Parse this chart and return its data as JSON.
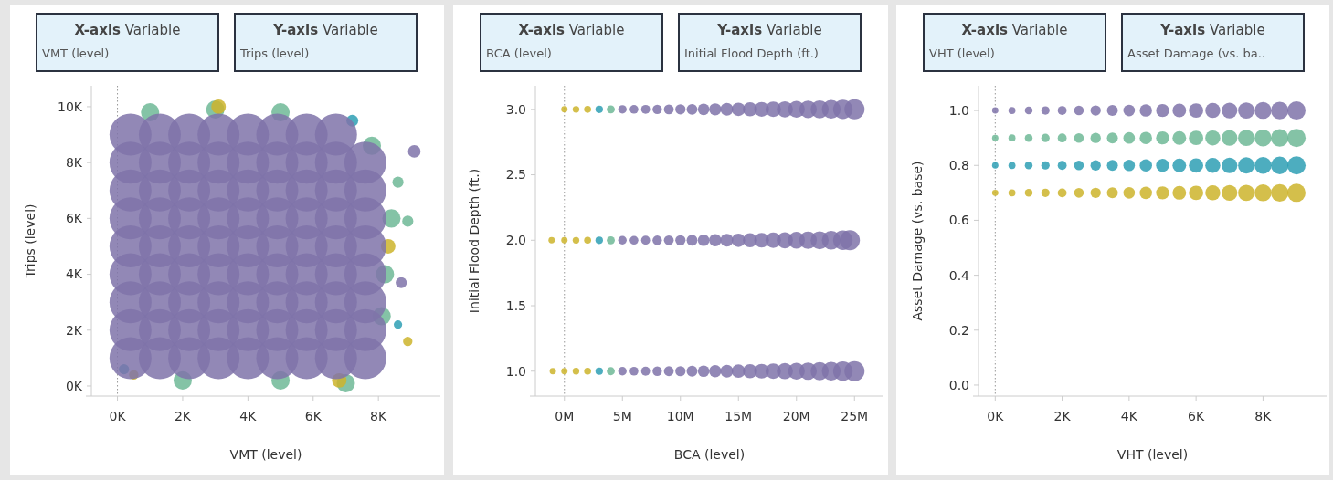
{
  "chart_data": [
    {
      "type": "bubble",
      "xlabel": "VMT (level)",
      "ylabel": "Trips (level)",
      "annotations": [
        "X-axis Variable",
        "VMT (level)",
        "Y-axis Variable",
        "Trips (level)"
      ],
      "marker": "circle",
      "xlim": [
        -0.8,
        9.9
      ],
      "ylim": [
        -0.36,
        10.75
      ],
      "xticks": [
        {
          "value": 0,
          "label": "0K"
        },
        {
          "value": 2,
          "label": "2K"
        },
        {
          "value": 4,
          "label": "4K"
        },
        {
          "value": 6,
          "label": "6K"
        },
        {
          "value": 8,
          "label": "8K"
        }
      ],
      "yticks": [
        {
          "value": 0,
          "label": "0K"
        },
        {
          "value": 2,
          "label": "2K"
        },
        {
          "value": 4,
          "label": "4K"
        },
        {
          "value": 6,
          "label": "6K"
        },
        {
          "value": 8,
          "label": "8K"
        },
        {
          "value": 10,
          "label": "10K"
        }
      ],
      "ref_lines": [
        {
          "axis": "x",
          "value": 0,
          "line_style": "dotted"
        }
      ],
      "series": [
        {
          "color": "#6fb896",
          "x": [
            8.4,
            8.2,
            8.1,
            7.8,
            3,
            5,
            1,
            2,
            5,
            7,
            8.9,
            8.6
          ],
          "values": [
            6,
            4,
            2.5,
            8.6,
            9.9,
            9.8,
            9.8,
            0.2,
            0.2,
            0.1,
            5.9,
            7.3
          ],
          "sizes": [
            0.19,
            0.19,
            0.19,
            0.19,
            0.19,
            0.19,
            0.19,
            0.19,
            0.19,
            0.19,
            0.07,
            0.07
          ]
        },
        {
          "color": "#ccb42c",
          "x": [
            3.1,
            8.3,
            6.8,
            8.9,
            0.5
          ],
          "values": [
            10,
            5,
            0.2,
            1.6,
            0.4
          ],
          "sizes": [
            0.12,
            0.12,
            0.12,
            0.05,
            0.05
          ]
        },
        {
          "color": "#2e9fb4",
          "x": [
            8.6,
            0.2,
            7.2
          ],
          "values": [
            2.2,
            0.6,
            9.5
          ],
          "sizes": [
            0.04,
            0.06,
            0.08
          ]
        },
        {
          "color": "#7f73a9",
          "x": [
            0.4,
            1.3,
            2.2,
            3.1,
            4,
            4.9,
            5.8,
            6.7,
            7.6,
            0.4,
            1.3,
            2.2,
            3.1,
            4,
            4.9,
            5.8,
            6.7,
            7.6,
            0.4,
            1.3,
            2.2,
            3.1,
            4,
            4.9,
            5.8,
            6.7,
            7.6,
            0.4,
            1.3,
            2.2,
            3.1,
            4,
            4.9,
            5.8,
            6.7,
            7.6,
            0.4,
            1.3,
            2.2,
            3.1,
            4,
            4.9,
            5.8,
            6.7,
            7.6,
            0.4,
            1.3,
            2.2,
            3.1,
            4,
            4.9,
            5.8,
            6.7,
            7.6,
            0.4,
            1.3,
            2.2,
            3.1,
            4,
            4.9,
            5.8,
            6.7,
            7.6,
            0.4,
            1.3,
            2.2,
            3.1,
            4,
            4.9,
            5.8,
            6.7,
            7.6,
            0.4,
            1.3,
            2.2,
            3.1,
            4,
            4.9,
            5.8,
            6.7,
            9.1,
            8.7
          ],
          "values": [
            1,
            1,
            1,
            1,
            1,
            1,
            1,
            1,
            1,
            2,
            2,
            2,
            2,
            2,
            2,
            2,
            2,
            2,
            3,
            3,
            3,
            3,
            3,
            3,
            3,
            3,
            3,
            4,
            4,
            4,
            4,
            4,
            4,
            4,
            4,
            4,
            5,
            5,
            5,
            5,
            5,
            5,
            5,
            5,
            5,
            6,
            6,
            6,
            6,
            6,
            6,
            6,
            6,
            6,
            7,
            7,
            7,
            7,
            7,
            7,
            7,
            7,
            7,
            8,
            8,
            8,
            8,
            8,
            8,
            8,
            8,
            8,
            9,
            9,
            9,
            9,
            9,
            9,
            9,
            9,
            8.4,
            3.7
          ],
          "sizes": [
            1,
            1,
            1,
            1,
            1,
            1,
            1,
            1,
            1,
            1,
            1,
            1,
            1,
            1,
            1,
            1,
            1,
            1,
            1,
            1,
            1,
            1,
            1,
            1,
            1,
            1,
            1,
            1,
            1,
            1,
            1,
            1,
            1,
            1,
            1,
            1,
            1,
            1,
            1,
            1,
            1,
            1,
            1,
            1,
            1,
            1,
            1,
            1,
            1,
            1,
            1,
            1,
            1,
            1,
            1,
            1,
            1,
            1,
            1,
            1,
            1,
            1,
            1,
            1,
            1,
            1,
            1,
            1,
            1,
            1,
            1,
            1,
            1,
            1,
            1,
            1,
            1,
            1,
            1,
            1,
            0.09,
            0.07
          ]
        }
      ]
    },
    {
      "type": "bubble",
      "xlabel": "BCA (level)",
      "ylabel": "Initial Flood Depth (ft.)",
      "annotations": [
        "X-axis Variable",
        "BCA (level)",
        "Y-axis Variable",
        "Initial Flood Depth (ft.)"
      ],
      "marker": "circle",
      "xlim": [
        -2.5,
        27.5
      ],
      "ylim": [
        0.81,
        3.18
      ],
      "xticks": [
        {
          "value": 0,
          "label": "0M"
        },
        {
          "value": 5,
          "label": "5M"
        },
        {
          "value": 10,
          "label": "10M"
        },
        {
          "value": 15,
          "label": "15M"
        },
        {
          "value": 20,
          "label": "20M"
        },
        {
          "value": 25,
          "label": "25M"
        }
      ],
      "yticks": [
        {
          "value": 1,
          "label": "1.0"
        },
        {
          "value": 1.5,
          "label": "1.5"
        },
        {
          "value": 2,
          "label": "2.0"
        },
        {
          "value": 2.5,
          "label": "2.5"
        },
        {
          "value": 3,
          "label": "3.0"
        }
      ],
      "ref_lines": [
        {
          "axis": "x",
          "value": 0,
          "line_style": "dotted"
        }
      ],
      "series": [
        {
          "color": "#ccb42c",
          "x": [
            -1,
            0,
            1,
            2,
            -1.1,
            0,
            1,
            2,
            0,
            1,
            2
          ],
          "values": [
            1,
            1,
            1,
            1,
            2,
            2,
            2,
            2,
            3,
            3,
            3
          ],
          "sizes": [
            0.1,
            0.1,
            0.11,
            0.12,
            0.1,
            0.1,
            0.11,
            0.12,
            0.1,
            0.11,
            0.12
          ]
        },
        {
          "color": "#2e9fb4",
          "x": [
            3,
            3,
            3
          ],
          "values": [
            1,
            2,
            3
          ],
          "sizes": [
            0.14,
            0.14,
            0.14
          ]
        },
        {
          "color": "#6fb896",
          "x": [
            4,
            4,
            4
          ],
          "values": [
            1,
            2,
            3
          ],
          "sizes": [
            0.16,
            0.16,
            0.16
          ]
        },
        {
          "color": "#7f73a9",
          "x": [
            5,
            6,
            7,
            8,
            9,
            10,
            11,
            12,
            13,
            14,
            15,
            16,
            17,
            18,
            19,
            20,
            21,
            22,
            23,
            24,
            25,
            5,
            6,
            7,
            8,
            9,
            10,
            11,
            12,
            13,
            14,
            15,
            16,
            17,
            18,
            19,
            20,
            21,
            22,
            23,
            24,
            24.6,
            5,
            6,
            7,
            8,
            9,
            10,
            11,
            12,
            13,
            14,
            15,
            16,
            17,
            18,
            19,
            20,
            21,
            22,
            23,
            24,
            25
          ],
          "values": [
            1,
            1,
            1,
            1,
            1,
            1,
            1,
            1,
            1,
            1,
            1,
            1,
            1,
            1,
            1,
            1,
            1,
            1,
            1,
            1,
            1,
            2,
            2,
            2,
            2,
            2,
            2,
            2,
            2,
            2,
            2,
            2,
            2,
            2,
            2,
            2,
            2,
            2,
            2,
            2,
            2,
            2,
            3,
            3,
            3,
            3,
            3,
            3,
            3,
            3,
            3,
            3,
            3,
            3,
            3,
            3,
            3,
            3,
            3,
            3,
            3,
            3,
            3
          ],
          "sizes": [
            0.18,
            0.19,
            0.2,
            0.22,
            0.24,
            0.26,
            0.29,
            0.33,
            0.37,
            0.41,
            0.45,
            0.5,
            0.54,
            0.59,
            0.65,
            0.7,
            0.76,
            0.81,
            0.87,
            0.94,
            1,
            0.18,
            0.19,
            0.2,
            0.22,
            0.24,
            0.26,
            0.29,
            0.33,
            0.37,
            0.41,
            0.45,
            0.5,
            0.54,
            0.59,
            0.65,
            0.7,
            0.76,
            0.81,
            0.87,
            0.94,
            1,
            0.18,
            0.19,
            0.2,
            0.22,
            0.24,
            0.26,
            0.29,
            0.33,
            0.37,
            0.41,
            0.45,
            0.5,
            0.54,
            0.59,
            0.65,
            0.7,
            0.76,
            0.81,
            0.87,
            0.94,
            1
          ]
        }
      ]
    },
    {
      "type": "bubble",
      "xlabel": "VHT (level)",
      "ylabel": "Asset Damage (vs. base)",
      "annotations": [
        "X-axis Variable",
        "VHT (level)",
        "Y-axis Variable",
        "Asset Damage (vs. ba.."
      ],
      "marker": "circle",
      "xlim": [
        -0.5,
        9.9
      ],
      "ylim": [
        -0.04,
        1.09
      ],
      "xticks": [
        {
          "value": 0,
          "label": "0K"
        },
        {
          "value": 2,
          "label": "2K"
        },
        {
          "value": 4,
          "label": "4K"
        },
        {
          "value": 6,
          "label": "6K"
        },
        {
          "value": 8,
          "label": "8K"
        }
      ],
      "yticks": [
        {
          "value": 0,
          "label": "0.0"
        },
        {
          "value": 0.2,
          "label": "0.2"
        },
        {
          "value": 0.4,
          "label": "0.4"
        },
        {
          "value": 0.6,
          "label": "0.6"
        },
        {
          "value": 0.8,
          "label": "0.8"
        },
        {
          "value": 1,
          "label": "1.0"
        }
      ],
      "ref_lines": [
        {
          "axis": "x",
          "value": 0,
          "line_style": "dotted"
        }
      ],
      "series": [
        {
          "color": "#7f73a9",
          "x": [
            0,
            0.5,
            1,
            1.5,
            2,
            2.5,
            3,
            3.5,
            4,
            4.5,
            5,
            5.5,
            6,
            6.5,
            7,
            7.5,
            8,
            8.5,
            9
          ],
          "values": [
            1,
            1,
            1,
            1,
            1,
            1,
            1,
            1,
            1,
            1,
            1,
            1,
            1,
            1,
            1,
            1,
            1,
            1,
            1
          ],
          "sizes": [
            0.12,
            0.15,
            0.18,
            0.21,
            0.24,
            0.28,
            0.32,
            0.36,
            0.4,
            0.46,
            0.51,
            0.56,
            0.62,
            0.68,
            0.74,
            0.8,
            0.86,
            0.93,
            1
          ]
        },
        {
          "color": "#6fb896",
          "x": [
            0,
            0.5,
            1,
            1.5,
            2,
            2.5,
            3,
            3.5,
            4,
            4.5,
            5,
            5.5,
            6,
            6.5,
            7,
            7.5,
            8,
            8.5,
            9
          ],
          "values": [
            0.9,
            0.9,
            0.9,
            0.9,
            0.9,
            0.9,
            0.9,
            0.9,
            0.9,
            0.9,
            0.9,
            0.9,
            0.9,
            0.9,
            0.9,
            0.9,
            0.9,
            0.9,
            0.9
          ],
          "sizes": [
            0.12,
            0.15,
            0.18,
            0.21,
            0.24,
            0.28,
            0.32,
            0.36,
            0.4,
            0.46,
            0.51,
            0.56,
            0.62,
            0.68,
            0.74,
            0.8,
            0.86,
            0.93,
            1
          ]
        },
        {
          "color": "#2e9fb4",
          "x": [
            0,
            0.5,
            1,
            1.5,
            2,
            2.5,
            3,
            3.5,
            4,
            4.5,
            5,
            5.5,
            6,
            6.5,
            7,
            7.5,
            8,
            8.5,
            9
          ],
          "values": [
            0.8,
            0.8,
            0.8,
            0.8,
            0.8,
            0.8,
            0.8,
            0.8,
            0.8,
            0.8,
            0.8,
            0.8,
            0.8,
            0.8,
            0.8,
            0.8,
            0.8,
            0.8,
            0.8
          ],
          "sizes": [
            0.12,
            0.15,
            0.18,
            0.21,
            0.24,
            0.28,
            0.32,
            0.36,
            0.4,
            0.46,
            0.51,
            0.56,
            0.62,
            0.68,
            0.74,
            0.8,
            0.86,
            0.93,
            1
          ]
        },
        {
          "color": "#ccb42c",
          "x": [
            0,
            0.5,
            1,
            1.5,
            2,
            2.5,
            3,
            3.5,
            4,
            4.5,
            5,
            5.5,
            6,
            6.5,
            7,
            7.5,
            8,
            8.5,
            9
          ],
          "values": [
            0.7,
            0.7,
            0.7,
            0.7,
            0.7,
            0.7,
            0.7,
            0.7,
            0.7,
            0.7,
            0.7,
            0.7,
            0.7,
            0.7,
            0.7,
            0.7,
            0.7,
            0.7,
            0.7
          ],
          "sizes": [
            0.12,
            0.15,
            0.18,
            0.21,
            0.24,
            0.28,
            0.32,
            0.36,
            0.4,
            0.46,
            0.51,
            0.56,
            0.62,
            0.68,
            0.74,
            0.8,
            0.86,
            0.93,
            1
          ]
        }
      ]
    }
  ]
}
